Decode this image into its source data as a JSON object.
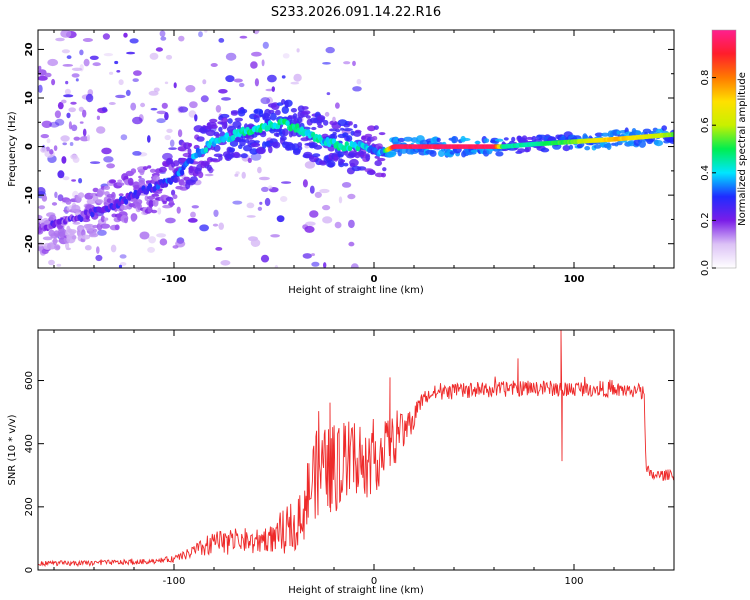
{
  "chart_data": [
    {
      "type": "heatmap",
      "title": "S233.2026.091.14.22.R16",
      "xlabel": "Height of straight line (km)",
      "ylabel": "Frequency (Hz)",
      "xlim": [
        -168,
        150
      ],
      "ylim": [
        -25,
        24
      ],
      "x_ticks": [
        -100,
        0,
        100
      ],
      "x_tick_labels": [
        "-100",
        "0",
        "100"
      ],
      "y_ticks": [
        -20,
        -10,
        0,
        10,
        20
      ],
      "y_tick_labels": [
        "-20",
        "-10",
        "0",
        "10",
        "20"
      ],
      "colorbar": {
        "label": "Normalized spectral amplitude",
        "range": [
          0,
          1
        ],
        "ticks": [
          0.0,
          0.2,
          0.4,
          0.6,
          0.8
        ],
        "tick_labels": [
          "0.0",
          "0.2",
          "0.4",
          "0.6",
          "0.8"
        ],
        "colors": [
          "#ffffff",
          "#dcc2f6",
          "#7a1de8",
          "#1f2cff",
          "#00e6ff",
          "#00ee50",
          "#c8f000",
          "#ffe000",
          "#ff7a00",
          "#ff1d2b",
          "#ff1f8f"
        ]
      },
      "ridge": {
        "x": [
          -168,
          -150,
          -130,
          -115,
          -100,
          -90,
          -80,
          -65,
          -55,
          -45,
          -35,
          -25,
          -15,
          -5,
          0,
          5,
          10,
          20,
          40,
          60,
          65,
          80,
          100,
          120,
          150
        ],
        "frequency": [
          -17,
          -15,
          -12,
          -9,
          -7,
          -2,
          1,
          3,
          4,
          5,
          3,
          1,
          0,
          0,
          -1,
          -1,
          0,
          0,
          0,
          0,
          0,
          0.5,
          1,
          1.5,
          2.5
        ],
        "amplitude": [
          0.2,
          0.2,
          0.25,
          0.25,
          0.3,
          0.35,
          0.4,
          0.45,
          0.45,
          0.45,
          0.45,
          0.4,
          0.45,
          0.4,
          0.3,
          0.4,
          0.95,
          0.95,
          0.95,
          0.95,
          0.45,
          0.45,
          0.55,
          0.75,
          0.55
        ]
      },
      "colors": {
        "axis": "#000000",
        "background": "#ffffff"
      }
    },
    {
      "type": "line",
      "title": "",
      "xlabel": "Height of straight line (km)",
      "ylabel": "SNR (10 * v/v)",
      "xlim": [
        -168,
        150
      ],
      "ylim": [
        0,
        760
      ],
      "x_ticks": [
        -100,
        0,
        100
      ],
      "x_tick_labels": [
        "-100",
        "0",
        "100"
      ],
      "y_ticks": [
        0,
        200,
        400,
        600
      ],
      "y_tick_labels": [
        "0",
        "200",
        "400",
        "600"
      ],
      "series": [
        {
          "name": "SNR",
          "color": "#ee2a2a",
          "x": [
            -168,
            -160,
            -150,
            -140,
            -130,
            -120,
            -110,
            -100,
            -95,
            -90,
            -85,
            -80,
            -75,
            -70,
            -65,
            -60,
            -55,
            -50,
            -45,
            -40,
            -38,
            -35,
            -32,
            -30,
            -25,
            -20,
            -15,
            -10,
            -5,
            0,
            5,
            10,
            15,
            20,
            22,
            25,
            30,
            40,
            50,
            60,
            70,
            80,
            90,
            93,
            95,
            100,
            110,
            120,
            130,
            135,
            136,
            138,
            140,
            145,
            150
          ],
          "y": [
            20,
            22,
            20,
            22,
            24,
            25,
            28,
            35,
            45,
            60,
            70,
            90,
            80,
            100,
            95,
            85,
            100,
            100,
            105,
            130,
            170,
            200,
            260,
            300,
            310,
            320,
            330,
            345,
            350,
            360,
            380,
            410,
            440,
            480,
            520,
            545,
            560,
            565,
            570,
            570,
            575,
            575,
            575,
            570,
            570,
            575,
            575,
            570,
            570,
            560,
            320,
            300,
            300,
            300,
            300
          ],
          "noise": [
            8,
            8,
            8,
            8,
            8,
            8,
            8,
            10,
            14,
            22,
            30,
            40,
            40,
            40,
            40,
            40,
            40,
            45,
            55,
            75,
            90,
            110,
            130,
            140,
            140,
            140,
            140,
            140,
            130,
            120,
            100,
            80,
            60,
            40,
            30,
            25,
            25,
            25,
            25,
            25,
            25,
            25,
            25,
            25,
            25,
            25,
            25,
            25,
            25,
            25,
            18,
            18,
            18,
            18,
            18
          ],
          "spikes": [
            {
              "x": 93.5,
              "y": 760
            },
            {
              "x": 94,
              "y": 345
            },
            {
              "x": 8,
              "y": 610
            },
            {
              "x": -22,
              "y": 530
            },
            {
              "x": 72,
              "y": 670
            }
          ]
        }
      ],
      "colors": {
        "axis": "#000000",
        "line": "#ee2a2a"
      }
    }
  ]
}
